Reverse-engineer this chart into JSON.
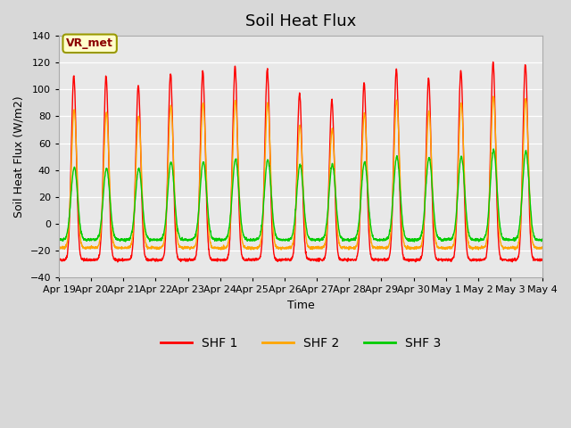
{
  "title": "Soil Heat Flux",
  "ylabel": "Soil Heat Flux (W/m2)",
  "xlabel": "Time",
  "ylim": [
    -40,
    140
  ],
  "yticks": [
    -40,
    -20,
    0,
    20,
    40,
    60,
    80,
    100,
    120,
    140
  ],
  "colors": {
    "SHF 1": "#ff0000",
    "SHF 2": "#ffa500",
    "SHF 3": "#00cc00"
  },
  "legend_label": "VR_met",
  "legend_labels": [
    "SHF 1",
    "SHF 2",
    "SHF 3"
  ],
  "x_tick_labels": [
    "Apr 19",
    "Apr 20",
    "Apr 21",
    "Apr 22",
    "Apr 23",
    "Apr 24",
    "Apr 25",
    "Apr 26",
    "Apr 27",
    "Apr 28",
    "Apr 29",
    "Apr 30",
    "May 1",
    "May 2",
    "May 3",
    "May 4"
  ],
  "background_color": "#d8d8d8",
  "plot_bg_color": "#e8e8e8",
  "n_days": 15,
  "points_per_day": 144,
  "shf1_peaks": [
    110,
    109,
    103,
    112,
    114,
    117,
    115,
    97,
    92,
    105,
    115,
    108,
    114,
    120,
    119
  ],
  "shf2_peaks": [
    85,
    83,
    80,
    88,
    90,
    92,
    90,
    73,
    70,
    82,
    92,
    84,
    90,
    95,
    93
  ],
  "shf3_peaks": [
    42,
    41,
    41,
    46,
    46,
    48,
    48,
    44,
    44,
    46,
    50,
    49,
    50,
    55,
    54
  ],
  "shf1_trough": -27,
  "shf2_trough": -18,
  "shf3_trough": -12,
  "title_fontsize": 13,
  "axis_fontsize": 9,
  "tick_fontsize": 8,
  "legend_fontsize": 10
}
